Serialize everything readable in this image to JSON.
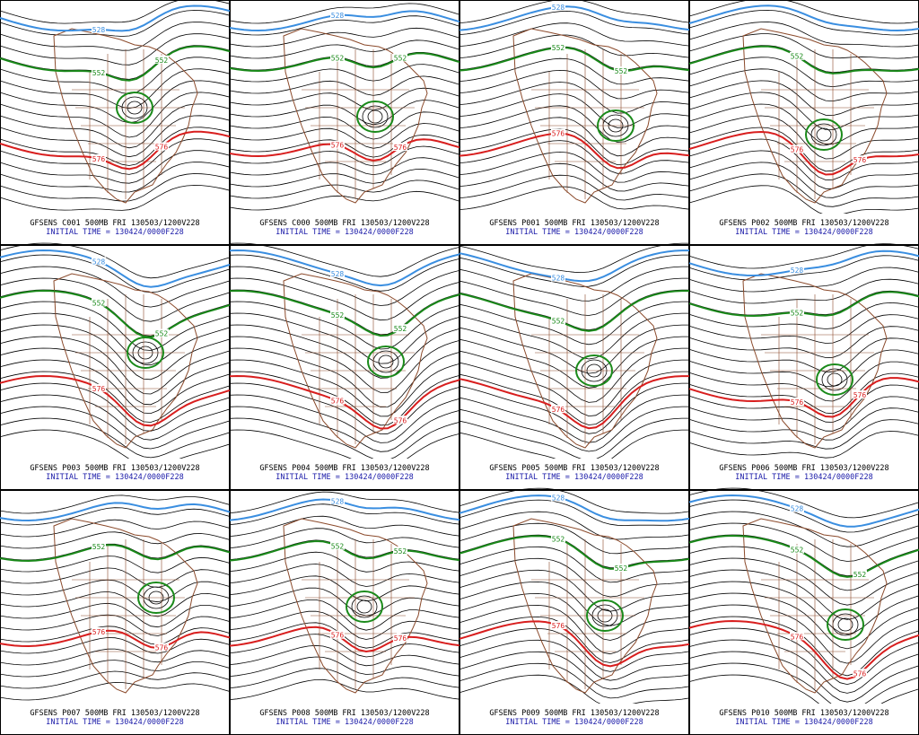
{
  "panels": [
    {
      "caption": "GFSENS C001 500MB FRI 130503/1200V228",
      "initial": "INITIAL TIME = 130424/0000F228",
      "labels": [
        {
          "text": "528",
          "color": "#3a8ee0"
        },
        {
          "text": "552",
          "color": "#1a8a1a"
        },
        {
          "text": "552",
          "color": "#1a8a1a"
        },
        {
          "text": "576",
          "color": "#d81e1e"
        },
        {
          "text": "576",
          "color": "#d81e1e"
        }
      ]
    },
    {
      "caption": "GFSENS C000 500MB FRI 130503/1200V228",
      "initial": "INITIAL TIME = 130424/0000F228",
      "labels": [
        {
          "text": "528",
          "color": "#3a8ee0"
        },
        {
          "text": "552",
          "color": "#1a8a1a"
        },
        {
          "text": "552",
          "color": "#1a8a1a"
        },
        {
          "text": "576",
          "color": "#d81e1e"
        },
        {
          "text": "576",
          "color": "#d81e1e"
        }
      ]
    },
    {
      "caption": "GFSENS P001 500MB FRI 130503/1200V228",
      "initial": "INITIAL TIME = 130424/0000F228",
      "labels": [
        {
          "text": "528",
          "color": "#3a8ee0"
        },
        {
          "text": "552",
          "color": "#1a8a1a"
        },
        {
          "text": "552",
          "color": "#1a8a1a"
        },
        {
          "text": "576",
          "color": "#d81e1e"
        }
      ]
    },
    {
      "caption": "GFSENS P002 500MB FRI 130503/1200V228",
      "initial": "INITIAL TIME = 130424/0000F228",
      "labels": [
        {
          "text": "552",
          "color": "#1a8a1a"
        },
        {
          "text": "576",
          "color": "#d81e1e"
        },
        {
          "text": "576",
          "color": "#d81e1e"
        }
      ]
    },
    {
      "caption": "GFSENS P003 500MB FRI 130503/1200V228",
      "initial": "INITIAL TIME = 130424/0000F228",
      "labels": [
        {
          "text": "528",
          "color": "#3a8ee0"
        },
        {
          "text": "552",
          "color": "#1a8a1a"
        },
        {
          "text": "552",
          "color": "#1a8a1a"
        },
        {
          "text": "576",
          "color": "#d81e1e"
        }
      ]
    },
    {
      "caption": "GFSENS P004 500MB FRI 130503/1200V228",
      "initial": "INITIAL TIME = 130424/0000F228",
      "labels": [
        {
          "text": "528",
          "color": "#3a8ee0"
        },
        {
          "text": "552",
          "color": "#1a8a1a"
        },
        {
          "text": "552",
          "color": "#1a8a1a"
        },
        {
          "text": "576",
          "color": "#d81e1e"
        },
        {
          "text": "576",
          "color": "#d81e1e"
        }
      ]
    },
    {
      "caption": "GFSENS P005 500MB FRI 130503/1200V228",
      "initial": "INITIAL TIME = 130424/0000F228",
      "labels": [
        {
          "text": "528",
          "color": "#3a8ee0"
        },
        {
          "text": "552",
          "color": "#1a8a1a"
        },
        {
          "text": "576",
          "color": "#d81e1e"
        }
      ]
    },
    {
      "caption": "GFSENS P006 500MB FRI 130503/1200V228",
      "initial": "INITIAL TIME = 130424/0000F228",
      "labels": [
        {
          "text": "528",
          "color": "#3a8ee0"
        },
        {
          "text": "552",
          "color": "#1a8a1a"
        },
        {
          "text": "576",
          "color": "#d81e1e"
        },
        {
          "text": "576",
          "color": "#d81e1e"
        }
      ]
    },
    {
      "caption": "GFSENS P007 500MB FRI 130503/1200V228",
      "initial": "INITIAL TIME = 130424/0000F228",
      "labels": [
        {
          "text": "552",
          "color": "#1a8a1a"
        },
        {
          "text": "576",
          "color": "#d81e1e"
        },
        {
          "text": "576",
          "color": "#d81e1e"
        }
      ]
    },
    {
      "caption": "GFSENS P008 500MB FRI 130503/1200V228",
      "initial": "INITIAL TIME = 130424/0000F228",
      "labels": [
        {
          "text": "528",
          "color": "#3a8ee0"
        },
        {
          "text": "552",
          "color": "#1a8a1a"
        },
        {
          "text": "552",
          "color": "#1a8a1a"
        },
        {
          "text": "576",
          "color": "#d81e1e"
        },
        {
          "text": "576",
          "color": "#d81e1e"
        }
      ]
    },
    {
      "caption": "GFSENS P009 500MB FRI 130503/1200V228",
      "initial": "INITIAL TIME = 130424/0000F228",
      "labels": [
        {
          "text": "528",
          "color": "#3a8ee0"
        },
        {
          "text": "552",
          "color": "#1a8a1a"
        },
        {
          "text": "552",
          "color": "#1a8a1a"
        },
        {
          "text": "576",
          "color": "#d81e1e"
        }
      ]
    },
    {
      "caption": "GFSENS P010 500MB FRI 130503/1200V228",
      "initial": "INITIAL TIME = 130424/0000F228",
      "labels": [
        {
          "text": "528",
          "color": "#3a8ee0"
        },
        {
          "text": "552",
          "color": "#1a8a1a"
        },
        {
          "text": "552",
          "color": "#1a8a1a"
        },
        {
          "text": "576",
          "color": "#d81e1e"
        },
        {
          "text": "576",
          "color": "#d81e1e"
        }
      ]
    }
  ]
}
